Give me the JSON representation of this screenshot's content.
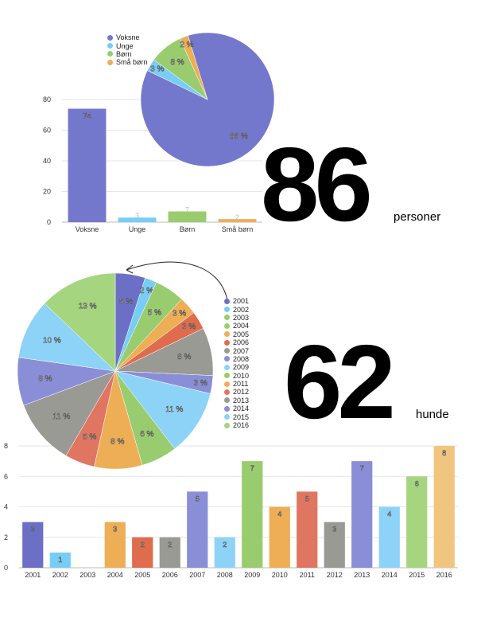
{
  "headline_people": {
    "number": "86",
    "unit": "personer"
  },
  "headline_dogs": {
    "number": "62",
    "unit": "hunde"
  },
  "chart_data": [
    {
      "type": "pie",
      "categories": [
        "Voksne",
        "Unge",
        "Børn",
        "Små børn"
      ],
      "values": [
        86,
        3,
        8,
        2
      ],
      "labels": [
        "86 %",
        "3 %",
        "8 %",
        "2 %"
      ],
      "colors": [
        "#7478cc",
        "#78cdf5",
        "#99cc6e",
        "#eeae55"
      ],
      "legend": [
        "Voksne",
        "Unge",
        "Børn",
        "Små børn"
      ],
      "legend_position": "top-left"
    },
    {
      "type": "bar",
      "categories": [
        "Voksne",
        "Unge",
        "Børn",
        "Små børn"
      ],
      "values": [
        74,
        3,
        7,
        2
      ],
      "colors": [
        "#7478cc",
        "#78cdf5",
        "#99cc6e",
        "#eeae55"
      ],
      "ylim": [
        0,
        80
      ],
      "yticks": [
        0,
        20,
        40,
        60,
        80
      ],
      "grid": true
    },
    {
      "type": "pie",
      "categories": [
        "2001",
        "2002",
        "2003",
        "2004",
        "2005",
        "2006",
        "2007",
        "2008",
        "2009",
        "2010",
        "2011",
        "2012",
        "2013",
        "2014",
        "2015",
        "2016"
      ],
      "values": [
        5,
        2,
        5,
        3,
        3,
        8,
        3,
        11,
        6,
        8,
        5,
        11,
        8,
        10,
        13
      ],
      "labels": [
        "5 %",
        "2 %",
        "5 %",
        "3 %",
        "3 %",
        "8 %",
        "3 %",
        "11 %",
        "6 %",
        "8 %",
        "5 %",
        "11 %",
        "8 %",
        "10 %",
        "13 %"
      ],
      "slice_categories": [
        "2001",
        "2002",
        "2004",
        "2005",
        "2006",
        "2007",
        "2008",
        "2009",
        "2010",
        "2011",
        "2012",
        "2013",
        "2014",
        "2015",
        "2016"
      ],
      "colors": [
        "#6b70c6",
        "#78cdf5",
        "#99cc6e",
        "#eeae55",
        "#e06c4e",
        "#9a9a94",
        "#8a8ed6",
        "#8dd3f8",
        "#99cc6e",
        "#eeae55",
        "#e07561",
        "#9a9a94",
        "#8a8ed6",
        "#8dd3f8",
        "#a5d57f",
        "#f0c580"
      ],
      "legend": [
        "2001",
        "2002",
        "2003",
        "2004",
        "2005",
        "2006",
        "2007",
        "2008",
        "2009",
        "2010",
        "2011",
        "2012",
        "2013",
        "2014",
        "2015",
        "2016"
      ],
      "legend_position": "right"
    },
    {
      "type": "bar",
      "categories": [
        "2001",
        "2002",
        "2003",
        "2004",
        "2005",
        "2006",
        "2007",
        "2008",
        "2009",
        "2010",
        "2011",
        "2012",
        "2013",
        "2014",
        "2015",
        "2016"
      ],
      "values": [
        3,
        1,
        0,
        3,
        2,
        2,
        5,
        2,
        7,
        4,
        5,
        3,
        7,
        4,
        6,
        8
      ],
      "colors": [
        "#6b70c6",
        "#78cdf5",
        "#99cc6e",
        "#eeae55",
        "#e06c4e",
        "#9a9a94",
        "#8a8ed6",
        "#8dd3f8",
        "#99cc6e",
        "#eeae55",
        "#e07561",
        "#9a9a94",
        "#8a8ed6",
        "#8dd3f8",
        "#a5d57f",
        "#f0c580"
      ],
      "ylim": [
        0,
        8
      ],
      "yticks": [
        0,
        2,
        4,
        6,
        8
      ],
      "grid": true
    }
  ]
}
